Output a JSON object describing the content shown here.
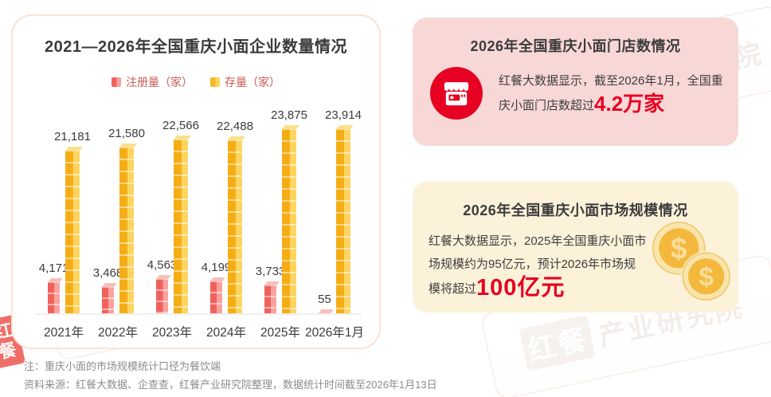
{
  "chart_card": {
    "title": "2021—2026年全国重庆小面企业数量情况",
    "legend": [
      {
        "label": "注册量（家）",
        "color": "#F1615C"
      },
      {
        "label": "存量（家）",
        "color": "#F5AD15"
      }
    ]
  },
  "chart_data": {
    "type": "bar",
    "title": "2021—2026年全国重庆小面企业数量情况",
    "categories": [
      "2021年",
      "2022年",
      "2023年",
      "2024年",
      "2025年",
      "2026年1月"
    ],
    "series": [
      {
        "name": "注册量（家）",
        "color": "#F1615C",
        "values": [
          4171,
          3468,
          4563,
          4199,
          3733,
          55
        ]
      },
      {
        "name": "存量（家）",
        "color": "#F5AD15",
        "values": [
          21181,
          21580,
          22566,
          22488,
          23875,
          23914
        ]
      }
    ],
    "ylim": [
      0,
      24500
    ],
    "grid": false,
    "legend_position": "top",
    "value_labels": true
  },
  "store_card": {
    "title": "2026年全国重庆小面门店数情况",
    "body": "红餐大数据显示，截至2026年1月，全国重庆小面门店数超过",
    "highlight": "4.2万家",
    "icon": "storefront-icon",
    "accent_color": "#E60021",
    "background_color": "#F8D7D7"
  },
  "market_card": {
    "title": "2026年全国重庆小面市场规模情况",
    "body": "红餐大数据显示，2025年全国重庆小面市场规模约为95亿元，预计2026年市场规模将超过",
    "highlight": "100亿元",
    "icon": "coins-icon",
    "accent_color": "#E60021",
    "background_color": "#FCF1D9"
  },
  "footnotes": {
    "note": "注：重庆小面的市场规模统计口径为餐饮端",
    "source": "资料来源：红餐大数据、企查查，红餐产业研究院整理，数据统计时间截至2026年1月13日"
  },
  "watermark": {
    "logo": "红餐",
    "text": "产业研究院"
  }
}
